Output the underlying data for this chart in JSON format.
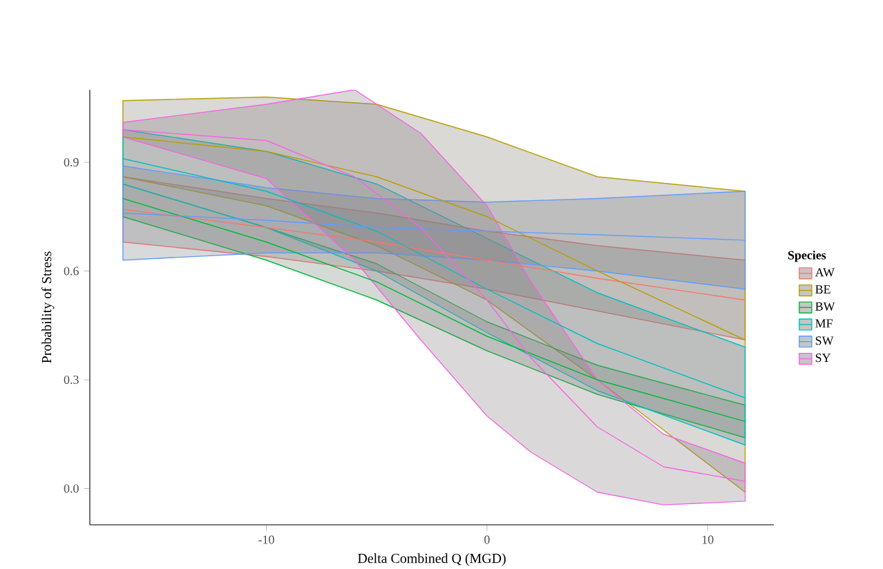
{
  "chart_data": {
    "type": "line",
    "xlabel": "Delta Combined Q (MGD)",
    "ylabel": "Probability of Stress",
    "legend_title": "Species",
    "legend": "right",
    "grid": false,
    "xlim": [
      -18,
      13
    ],
    "ylim": [
      -0.1,
      1.1
    ],
    "xticks": [
      -10,
      0,
      10
    ],
    "yticks": [
      {
        "value": 0,
        "label": "0.0"
      },
      {
        "value": 0.3,
        "label": "0.3"
      },
      {
        "value": 0.6,
        "label": "0.6"
      },
      {
        "value": 0.9,
        "label": "0.9"
      }
    ],
    "series": [
      {
        "name": "AW",
        "color": "#f8766d",
        "x": [
          -16.5,
          -10,
          -5,
          0,
          5,
          11.7
        ],
        "values": [
          0.77,
          0.72,
          0.68,
          0.63,
          0.58,
          0.52
        ],
        "lower": [
          0.68,
          0.64,
          0.6,
          0.55,
          0.49,
          0.41
        ],
        "upper": [
          0.86,
          0.8,
          0.76,
          0.71,
          0.67,
          0.63
        ]
      },
      {
        "name": "BE",
        "color": "#b79f00",
        "x": [
          -16.5,
          -10,
          -5,
          0,
          5,
          11.7
        ],
        "values": [
          0.97,
          0.93,
          0.86,
          0.75,
          0.6,
          0.41
        ],
        "lower": [
          0.86,
          0.78,
          0.67,
          0.52,
          0.3,
          -0.01
        ],
        "upper": [
          1.07,
          1.08,
          1.06,
          0.97,
          0.86,
          0.82
        ]
      },
      {
        "name": "BW",
        "color": "#00ba38",
        "x": [
          -16.5,
          -10,
          -5,
          0,
          5,
          11.7
        ],
        "values": [
          0.8,
          0.68,
          0.57,
          0.42,
          0.3,
          0.185
        ],
        "lower": [
          0.75,
          0.63,
          0.52,
          0.38,
          0.26,
          0.14
        ],
        "upper": [
          0.84,
          0.72,
          0.62,
          0.46,
          0.34,
          0.23
        ]
      },
      {
        "name": "MF",
        "color": "#00bfc4",
        "x": [
          -16.5,
          -10,
          -5,
          0,
          5,
          11.7
        ],
        "values": [
          0.91,
          0.82,
          0.71,
          0.55,
          0.4,
          0.25
        ],
        "lower": [
          0.84,
          0.72,
          0.6,
          0.43,
          0.27,
          0.12
        ],
        "upper": [
          0.99,
          0.93,
          0.84,
          0.69,
          0.54,
          0.39
        ]
      },
      {
        "name": "SW",
        "color": "#619cff",
        "x": [
          -16.5,
          -10,
          -5,
          0,
          5,
          11.7
        ],
        "values": [
          0.76,
          0.74,
          0.72,
          0.71,
          0.7,
          0.685
        ],
        "lower": [
          0.63,
          0.65,
          0.65,
          0.63,
          0.6,
          0.55
        ],
        "upper": [
          0.89,
          0.83,
          0.8,
          0.79,
          0.8,
          0.82
        ]
      },
      {
        "name": "SY",
        "color": "#f564e3",
        "x": [
          -16.5,
          -10,
          -6,
          -3,
          0,
          2,
          5,
          8,
          11.7
        ],
        "values": [
          0.99,
          0.96,
          0.86,
          0.72,
          0.52,
          0.36,
          0.17,
          0.06,
          0.02
        ],
        "lower": [
          0.97,
          0.855,
          0.63,
          0.41,
          0.2,
          0.1,
          -0.01,
          -0.045,
          -0.035
        ],
        "upper": [
          1.01,
          1.06,
          1.1,
          0.98,
          0.78,
          0.57,
          0.3,
          0.15,
          0.07
        ]
      }
    ]
  }
}
